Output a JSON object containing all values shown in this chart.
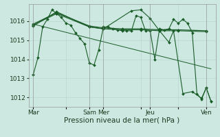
{
  "bg_color": "#cce8e0",
  "grid_color": "#b8d8d0",
  "line_color": "#1a5c28",
  "xlabel": "Pression niveau de la mer( hPa )",
  "ylim": [
    1011.5,
    1016.9
  ],
  "yticks": [
    1012,
    1013,
    1014,
    1015,
    1016
  ],
  "xlim": [
    0,
    40
  ],
  "day_labels": [
    "Mar",
    "",
    "Sam",
    "Mer",
    "",
    "Jeu",
    "",
    "Ven"
  ],
  "day_positions": [
    1,
    8,
    13,
    16,
    24,
    26,
    32,
    38
  ],
  "series": [
    {
      "x": [
        1,
        2,
        3,
        4,
        5,
        6,
        7,
        8,
        9,
        10,
        11,
        12,
        13,
        14,
        15,
        16,
        17,
        18,
        19,
        20,
        21,
        22,
        23,
        24,
        25,
        26,
        27,
        28,
        29,
        30,
        31,
        32,
        33,
        34,
        35,
        36,
        37,
        38,
        39
      ],
      "y": [
        1013.2,
        1014.1,
        1015.7,
        1016.1,
        1016.6,
        1016.4,
        1016.2,
        1015.9,
        1015.8,
        1015.4,
        1015.1,
        1014.8,
        1013.8,
        1013.7,
        1014.5,
        1015.7,
        1015.7,
        1015.6,
        1015.55,
        1015.5,
        1015.5,
        1015.5,
        1016.3,
        1016.2,
        1015.5,
        1015.5,
        1014.0,
        1015.6,
        1015.55,
        1015.6,
        1016.1,
        1015.9,
        1016.1,
        1015.9,
        1015.4,
        1012.2,
        1011.9,
        1012.5,
        1011.8
      ],
      "marker": "D",
      "markersize": 2.0,
      "linewidth": 0.8
    },
    {
      "x": [
        1,
        6,
        13,
        16,
        20,
        24,
        28,
        32,
        38
      ],
      "y": [
        1015.85,
        1016.45,
        1015.75,
        1015.65,
        1015.6,
        1015.6,
        1015.55,
        1015.55,
        1015.5
      ],
      "marker": "D",
      "markersize": 2.0,
      "linewidth": 0.9
    },
    {
      "x": [
        1,
        6,
        13,
        16,
        20,
        24,
        28,
        32,
        38
      ],
      "y": [
        1015.8,
        1016.4,
        1015.7,
        1015.6,
        1015.55,
        1015.55,
        1015.5,
        1015.5,
        1015.45
      ],
      "marker": "D",
      "markersize": 2.0,
      "linewidth": 0.8
    },
    {
      "x": [
        1,
        39
      ],
      "y": [
        1015.85,
        1013.5
      ],
      "marker": null,
      "markersize": 0,
      "linewidth": 0.7
    },
    {
      "x": [
        1,
        6,
        13,
        16,
        22,
        24,
        26,
        28,
        30,
        31,
        33,
        35,
        37,
        38,
        39
      ],
      "y": [
        1015.75,
        1016.5,
        1015.7,
        1015.6,
        1016.55,
        1016.6,
        1016.15,
        1015.5,
        1014.9,
        1015.5,
        1012.2,
        1012.3,
        1011.95,
        1012.5,
        1011.8
      ],
      "marker": "D",
      "markersize": 2.0,
      "linewidth": 0.8
    }
  ],
  "vline_positions": [
    1,
    13,
    16,
    26,
    38
  ],
  "vline_color": "#888888",
  "vline_alpha": 0.6,
  "xlabel_fontsize": 7.5,
  "tick_fontsize": 6.5
}
